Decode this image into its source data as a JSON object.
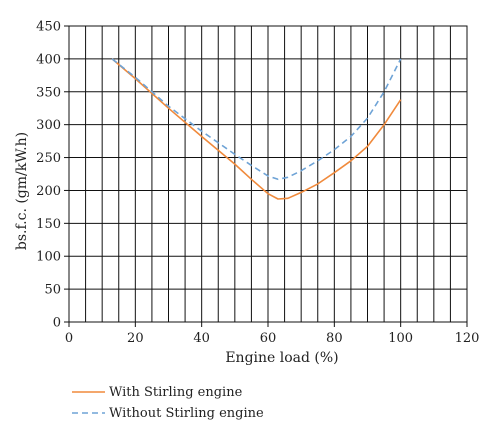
{
  "chart_data": {
    "type": "line",
    "xlabel": "Engine load (%)",
    "ylabel": "bs.f.c. (gm/kW.h)",
    "xlim": [
      0,
      120
    ],
    "ylim": [
      0,
      450
    ],
    "xticks": [
      0,
      20,
      40,
      60,
      80,
      100,
      120
    ],
    "yticks": [
      0,
      50,
      100,
      150,
      200,
      250,
      300,
      350,
      400,
      450
    ],
    "grid": true,
    "legend_position": "bottom-left",
    "series": [
      {
        "name": "With Stirling engine",
        "color": "#f08a3c",
        "style": "solid",
        "x": [
          13,
          20,
          30,
          40,
          50,
          55,
          60,
          63,
          66,
          70,
          75,
          80,
          85,
          90,
          95,
          100
        ],
        "y": [
          400,
          370,
          325,
          282,
          240,
          217,
          195,
          187,
          188,
          197,
          210,
          227,
          245,
          267,
          300,
          338
        ]
      },
      {
        "name": "Without Stirling engine",
        "color": "#6ea3d6",
        "style": "dashed",
        "x": [
          13,
          20,
          30,
          40,
          50,
          55,
          60,
          63,
          66,
          70,
          75,
          80,
          85,
          90,
          95,
          100
        ],
        "y": [
          400,
          372,
          328,
          290,
          255,
          238,
          222,
          217,
          220,
          230,
          245,
          262,
          282,
          310,
          350,
          400
        ]
      }
    ]
  }
}
